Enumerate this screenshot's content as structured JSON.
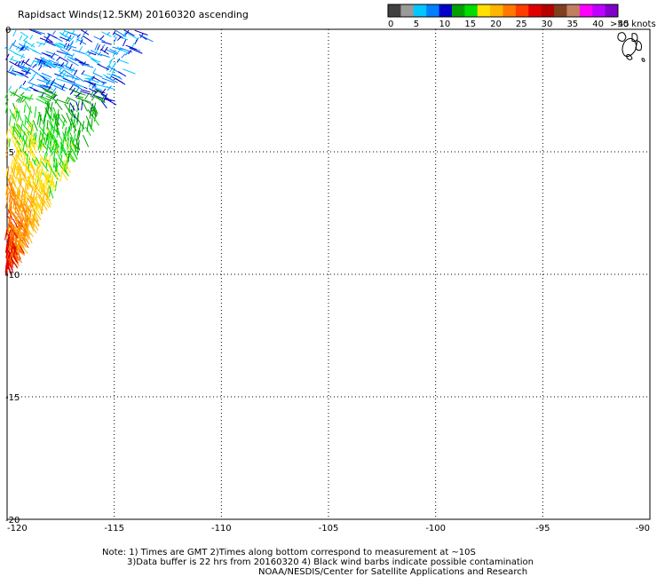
{
  "title": "Rapidsact Winds(12.5KM) 20160320 ascending",
  "colorbar": {
    "unit_label": ">50 knots",
    "labels": [
      "0",
      "5",
      "10",
      "15",
      "20",
      "25",
      "30",
      "35",
      "40",
      "45"
    ],
    "colors": [
      "#404040",
      "#9a9a9a",
      "#00c8ff",
      "#0080ff",
      "#0000c8",
      "#00a000",
      "#00dc00",
      "#ffe000",
      "#ffb400",
      "#ff7800",
      "#ff3c00",
      "#e00000",
      "#b40000",
      "#804020",
      "#c08060",
      "#ff00ff",
      "#c000ff",
      "#8000c8"
    ]
  },
  "axes": {
    "x_ticks": [
      "-120",
      "-115",
      "-110",
      "-105",
      "-100",
      "-95",
      "-90"
    ],
    "y_ticks": [
      "0",
      "-5",
      "-10",
      "-15",
      "-20"
    ],
    "lon_range": [
      -120,
      -90
    ],
    "lat_range": [
      -20,
      0
    ]
  },
  "notes": [
    "Note: 1) Times are GMT 2)Times along bottom correspond to measurement at ~10S",
    "3)Data buffer is 22 hrs from 20160320 4) Black wind barbs indicate possible contamination",
    "NOAA/NESDIS/Center for Satellite Applications and Research"
  ],
  "colors": {
    "background": "#ffffff",
    "grid": "#000000",
    "land_outline": "#000000"
  }
}
